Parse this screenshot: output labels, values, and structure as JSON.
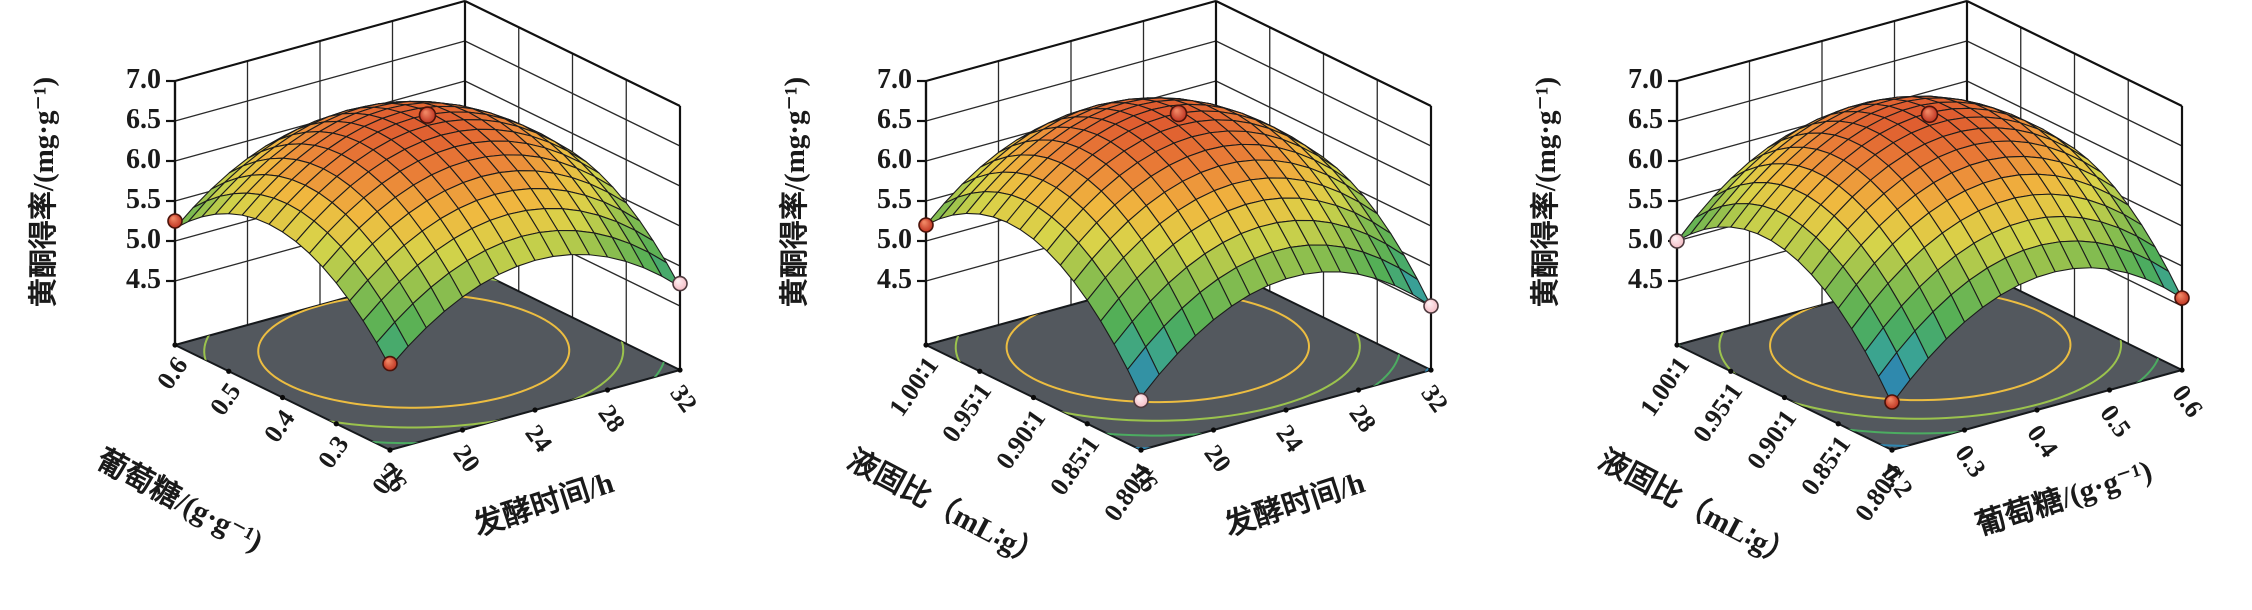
{
  "figure": {
    "background": "#ffffff"
  },
  "style": {
    "floor_color": "#53585e",
    "floor_edge_color": "#16191c",
    "wall_grid_color": "#2a2a2a",
    "box_edge_color": "#111111",
    "mesh_line_color": "#1c1c1c",
    "text_color": "#1a1a1a",
    "point_red": "#c03522",
    "point_pink": "#f5bdc5",
    "colormap": [
      [
        0.0,
        "#3558a8"
      ],
      [
        0.1,
        "#2e86b0"
      ],
      [
        0.2,
        "#3aa393"
      ],
      [
        0.32,
        "#4fae57"
      ],
      [
        0.48,
        "#8fbf4e"
      ],
      [
        0.6,
        "#d7d44a"
      ],
      [
        0.72,
        "#f0b83f"
      ],
      [
        0.84,
        "#ea8038"
      ],
      [
        1.0,
        "#d9492b"
      ]
    ],
    "colormap_zmin": 4.25,
    "colormap_zmax": 6.75
  },
  "chart_data": [
    {
      "type": "surface3d",
      "zlabel": "黄酮得率/(mg·g⁻¹)",
      "z_ticks": [
        4.5,
        5.0,
        5.5,
        6.0,
        6.5,
        7.0
      ],
      "zlim": [
        4.5,
        7.0
      ],
      "left_axis": {
        "label": "葡萄糖/(g·g⁻¹)",
        "ticks": [
          "0.2",
          "0.3",
          "0.4",
          "0.5",
          "0.6"
        ]
      },
      "right_axis": {
        "label": "发酵时间/h",
        "ticks": [
          "16",
          "20",
          "24",
          "28",
          "32"
        ]
      },
      "model": {
        "b0": 6.6,
        "b1": 0.21,
        "b2": 0.0,
        "b11": -0.82,
        "b22": -0.83,
        "b12": 0.0
      },
      "contour_levels": [
        4.5,
        5.0,
        5.5,
        6.0
      ],
      "points": [
        {
          "u": 0.5,
          "v": 0.5,
          "z": 6.73,
          "color": "red"
        },
        {
          "u": 1.0,
          "v": 0.0,
          "z": 5.25,
          "color": "red"
        },
        {
          "u": 0.0,
          "v": 0.0,
          "z": 4.78,
          "color": "red"
        },
        {
          "u": 0.0,
          "v": 1.0,
          "z": 4.78,
          "color": "pink"
        }
      ]
    },
    {
      "type": "surface3d",
      "zlabel": "黄酮得率/(mg·g⁻¹)",
      "z_ticks": [
        4.5,
        5.0,
        5.5,
        6.0,
        6.5,
        7.0
      ],
      "zlim": [
        4.5,
        7.0
      ],
      "left_axis": {
        "label": "液固比（mL∶g）",
        "ticks": [
          "0.80∶1",
          "0.85∶1",
          "0.90∶1",
          "0.95∶1",
          "1.00∶1"
        ]
      },
      "right_axis": {
        "label": "发酵时间/h",
        "ticks": [
          "16",
          "20",
          "24",
          "28",
          "32"
        ]
      },
      "model": {
        "b0": 6.6,
        "b1": 0.36,
        "b2": 0.01,
        "b11": -0.9,
        "b22": -0.91,
        "b12": -0.06
      },
      "contour_levels": [
        4.5,
        5.0,
        5.5,
        6.0
      ],
      "points": [
        {
          "u": 0.5,
          "v": 0.5,
          "z": 6.75,
          "color": "red"
        },
        {
          "u": 1.0,
          "v": 0.0,
          "z": 5.2,
          "color": "red"
        },
        {
          "u": 0.0,
          "v": 0.0,
          "z": 4.32,
          "color": "pink"
        },
        {
          "u": 0.0,
          "v": 1.0,
          "z": 4.5,
          "color": "pink"
        }
      ]
    },
    {
      "type": "surface3d",
      "zlabel": "黄酮得率/(mg·g⁻¹)",
      "z_ticks": [
        4.5,
        5.0,
        5.5,
        6.0,
        6.5,
        7.0
      ],
      "zlim": [
        4.5,
        7.0
      ],
      "left_axis": {
        "label": "液固比（mL∶g）",
        "ticks": [
          "0.80∶1",
          "0.85∶1",
          "0.90∶1",
          "0.95∶1",
          "1.00∶1"
        ]
      },
      "right_axis": {
        "label": "葡萄糖/(g·g⁻¹)",
        "ticks": [
          "0.2",
          "0.3",
          "0.4",
          "0.5",
          "0.6"
        ]
      },
      "model": {
        "b0": 6.6,
        "b1": 0.33,
        "b2": 0.13,
        "b11": -0.91,
        "b22": -0.92,
        "b12": -0.03
      },
      "contour_levels": [
        4.5,
        5.0,
        5.5,
        6.0
      ],
      "points": [
        {
          "u": 0.5,
          "v": 0.5,
          "z": 6.74,
          "color": "red"
        },
        {
          "u": 1.0,
          "v": 0.0,
          "z": 5.0,
          "color": "pink"
        },
        {
          "u": 0.0,
          "v": 0.0,
          "z": 4.3,
          "color": "red"
        },
        {
          "u": 0.0,
          "v": 1.0,
          "z": 4.6,
          "color": "red"
        }
      ]
    }
  ]
}
